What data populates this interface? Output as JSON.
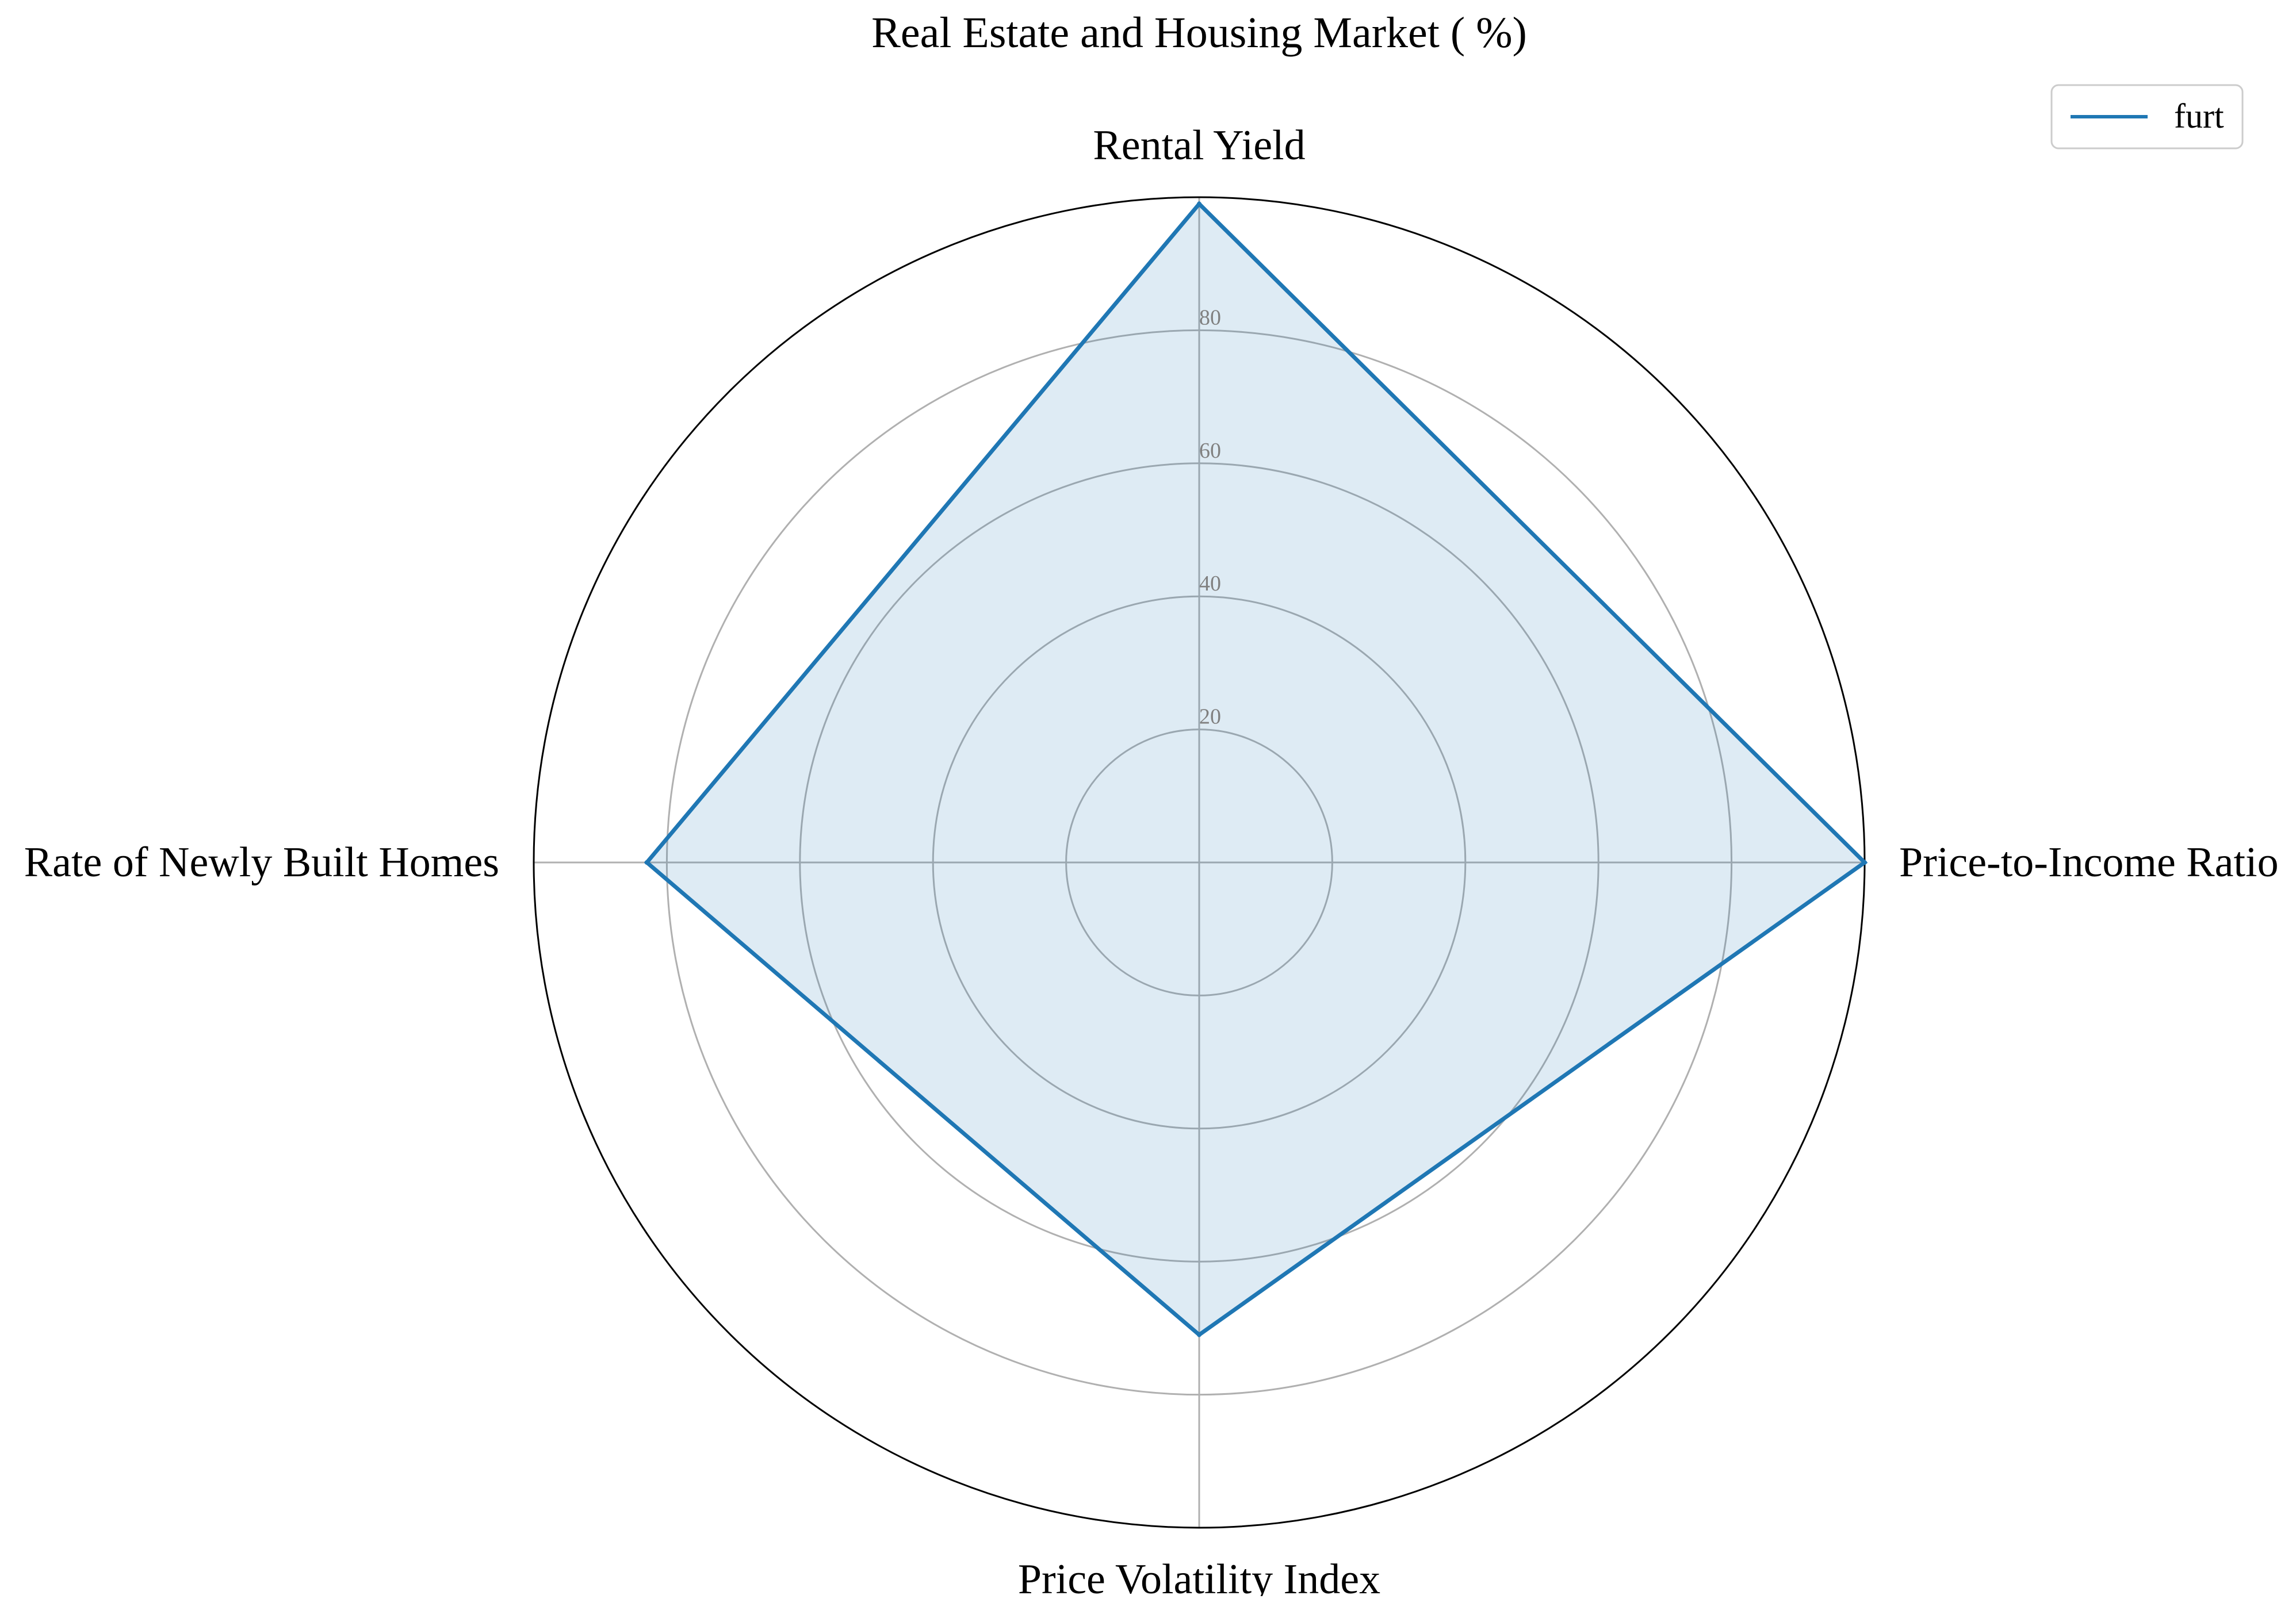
{
  "chart_data": {
    "type": "radar",
    "title": "Real Estate and Housing Market ( %)",
    "categories": [
      "Rental Yield",
      "Price-to-Income Ratio",
      "Price Volatility Index",
      "Rate of Newly Built Homes"
    ],
    "rlim": [
      0,
      100
    ],
    "rticks": [
      20,
      40,
      60,
      80
    ],
    "rtick_labels": [
      "20",
      "40",
      "60",
      "80"
    ],
    "grid": true,
    "legend_position": "top-right",
    "series": [
      {
        "name": "furt",
        "values": [
          99,
          100,
          71,
          83
        ],
        "color": "#1f77b4",
        "fill_color": "#1f77b4"
      }
    ]
  }
}
